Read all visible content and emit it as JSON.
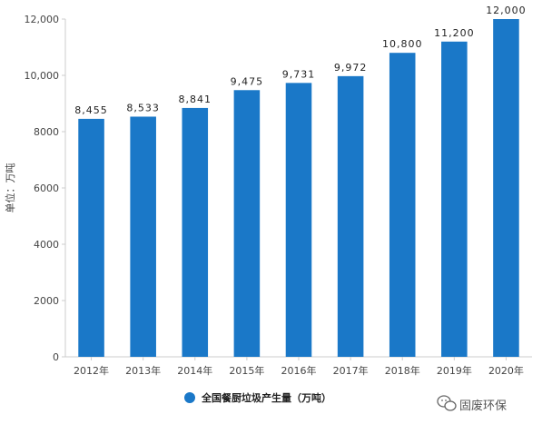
{
  "chart_data": {
    "type": "bar",
    "categories": [
      "2012年",
      "2013年",
      "2014年",
      "2015年",
      "2016年",
      "2017年",
      "2018年",
      "2019年",
      "2020年"
    ],
    "series": [
      {
        "name": "全国餐厨垃圾产生量（万吨）",
        "values": [
          8455,
          8533,
          8841,
          9475,
          9731,
          9972,
          10800,
          11200,
          12000
        ],
        "color": "#1a78c8"
      }
    ],
    "data_labels": [
      "8,455",
      "8,533",
      "8,841",
      "9,475",
      "9,731",
      "9,972",
      "10,800",
      "11,200",
      "12,000"
    ],
    "y_ticks": [
      0,
      2000,
      4000,
      6000,
      8000,
      10000,
      12000
    ],
    "y_tick_labels": [
      "0",
      "2000",
      "4000",
      "6000",
      "8000",
      "10,000",
      "12,000"
    ],
    "ylim": [
      0,
      12000
    ],
    "ylabel": "单位：万吨",
    "xlabel": "",
    "title": "",
    "grid": false,
    "legend_position": "bottom-left"
  },
  "watermark": {
    "text": "固废环保",
    "icon": "wechat-icon"
  }
}
